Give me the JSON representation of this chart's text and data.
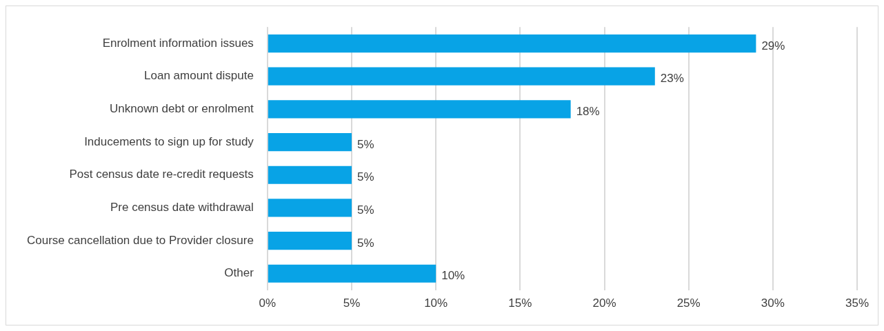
{
  "chart_data": {
    "type": "bar",
    "orientation": "horizontal",
    "categories": [
      "Enrolment information issues",
      "Loan amount dispute",
      "Unknown debt or enrolment",
      "Inducements to sign up for study",
      "Post census date re-credit requests",
      "Pre census date withdrawal",
      "Course cancellation due to Provider closure",
      "Other"
    ],
    "values": [
      29,
      23,
      18,
      5,
      5,
      5,
      5,
      10
    ],
    "value_labels": [
      "29%",
      "23%",
      "18%",
      "5%",
      "5%",
      "5%",
      "5%",
      "10%"
    ],
    "color": "#08a3e6",
    "xlim": [
      0,
      35
    ],
    "xticks": [
      {
        "value": 0,
        "label": "0%"
      },
      {
        "value": 5,
        "label": "5%"
      },
      {
        "value": 10,
        "label": "10%"
      },
      {
        "value": 15,
        "label": "15%"
      },
      {
        "value": 20,
        "label": "20%"
      },
      {
        "value": 25,
        "label": "25%"
      },
      {
        "value": 30,
        "label": "30%"
      },
      {
        "value": 35,
        "label": "35%"
      }
    ],
    "grid": "x",
    "legend": false
  }
}
